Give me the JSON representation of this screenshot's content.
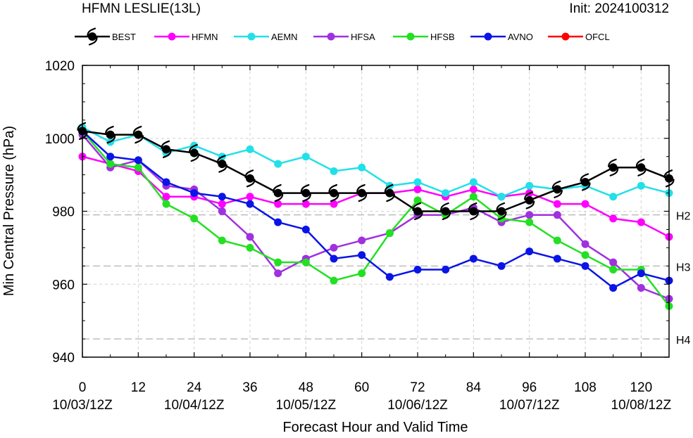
{
  "chart_data": {
    "type": "line",
    "title_left": "HFMN LESLIE(13L)",
    "title_right": "Init: 2024100312",
    "xlabel": "Forecast Hour and Valid Time",
    "ylabel": "Min Central Pressure (hPa)",
    "xlim": [
      0,
      126
    ],
    "ylim": [
      940,
      1020
    ],
    "x_ticks": [
      {
        "value": 0,
        "label": "0",
        "date": "10/03/12Z"
      },
      {
        "value": 12,
        "label": "12",
        "date": ""
      },
      {
        "value": 24,
        "label": "24",
        "date": "10/04/12Z"
      },
      {
        "value": 36,
        "label": "36",
        "date": ""
      },
      {
        "value": 48,
        "label": "48",
        "date": "10/05/12Z"
      },
      {
        "value": 60,
        "label": "60",
        "date": ""
      },
      {
        "value": 72,
        "label": "72",
        "date": "10/06/12Z"
      },
      {
        "value": 84,
        "label": "84",
        "date": ""
      },
      {
        "value": 96,
        "label": "96",
        "date": "10/07/12Z"
      },
      {
        "value": 108,
        "label": "108",
        "date": ""
      },
      {
        "value": 120,
        "label": "120",
        "date": "10/08/12Z"
      }
    ],
    "y_ticks": [
      940,
      960,
      980,
      1000,
      1020
    ],
    "grid": true,
    "reference_lines": [
      {
        "value": 979,
        "label": "H2"
      },
      {
        "value": 965,
        "label": "H3"
      },
      {
        "value": 945,
        "label": "H4"
      }
    ],
    "series": [
      {
        "name": "BEST",
        "color": "#000000",
        "marker": "hurricane",
        "x": [
          0,
          6,
          12,
          18,
          24,
          30,
          36,
          42,
          48,
          54,
          60,
          66,
          72,
          78,
          84,
          90,
          96,
          102,
          108,
          114,
          120,
          126
        ],
        "y": [
          1002,
          1001,
          1001,
          997,
          996,
          993,
          989,
          985,
          985,
          985,
          985,
          985,
          980,
          980,
          980,
          980,
          983,
          986,
          988,
          992,
          992,
          989
        ]
      },
      {
        "name": "HFMN",
        "color": "#ff00ff",
        "marker": "circle",
        "x": [
          0,
          6,
          12,
          18,
          24,
          30,
          36,
          42,
          48,
          54,
          60,
          66,
          72,
          78,
          84,
          90,
          96,
          102,
          108,
          114,
          120,
          126
        ],
        "y": [
          995,
          993,
          991,
          984,
          984,
          982,
          984,
          982,
          982,
          982,
          985,
          985,
          986,
          984,
          986,
          984,
          985,
          982,
          982,
          978,
          977,
          973
        ]
      },
      {
        "name": "AEMN",
        "color": "#22e0e8",
        "marker": "circle",
        "x": [
          0,
          6,
          12,
          18,
          24,
          30,
          36,
          42,
          48,
          54,
          60,
          66,
          72,
          78,
          84,
          90,
          96,
          102,
          108,
          114,
          120,
          126
        ],
        "y": [
          1003,
          999,
          1001,
          996,
          998,
          995,
          997,
          993,
          995,
          991,
          992,
          987,
          988,
          985,
          988,
          984,
          987,
          986,
          987,
          984,
          987,
          985
        ]
      },
      {
        "name": "HFSA",
        "color": "#a030e0",
        "marker": "circle",
        "x": [
          0,
          6,
          12,
          18,
          24,
          30,
          36,
          42,
          48,
          54,
          60,
          66,
          72,
          78,
          84,
          90,
          96,
          102,
          108,
          114,
          120,
          126
        ],
        "y": [
          1001,
          992,
          994,
          987,
          986,
          980,
          973,
          963,
          967,
          970,
          972,
          974,
          979,
          979,
          981,
          977,
          979,
          979,
          971,
          966,
          959,
          956
        ]
      },
      {
        "name": "HFSB",
        "color": "#22e022",
        "marker": "circle",
        "x": [
          0,
          6,
          12,
          18,
          24,
          30,
          36,
          42,
          48,
          54,
          60,
          66,
          72,
          78,
          84,
          90,
          96,
          102,
          108,
          114,
          120,
          126
        ],
        "y": [
          1002,
          993,
          992,
          982,
          978,
          972,
          970,
          966,
          966,
          961,
          963,
          974,
          983,
          979,
          984,
          978,
          977,
          972,
          968,
          964,
          964,
          954
        ]
      },
      {
        "name": "AVNO",
        "color": "#0a14e6",
        "marker": "circle",
        "x": [
          0,
          6,
          12,
          18,
          24,
          30,
          36,
          42,
          48,
          54,
          60,
          66,
          72,
          78,
          84,
          90,
          96,
          102,
          108,
          114,
          120,
          126
        ],
        "y": [
          1002,
          995,
          994,
          988,
          985,
          984,
          982,
          977,
          975,
          967,
          968,
          962,
          964,
          964,
          967,
          965,
          969,
          967,
          965,
          959,
          963,
          961
        ]
      },
      {
        "name": "OFCL",
        "color": "#ff0000",
        "marker": "circle",
        "x": [],
        "y": []
      }
    ]
  }
}
